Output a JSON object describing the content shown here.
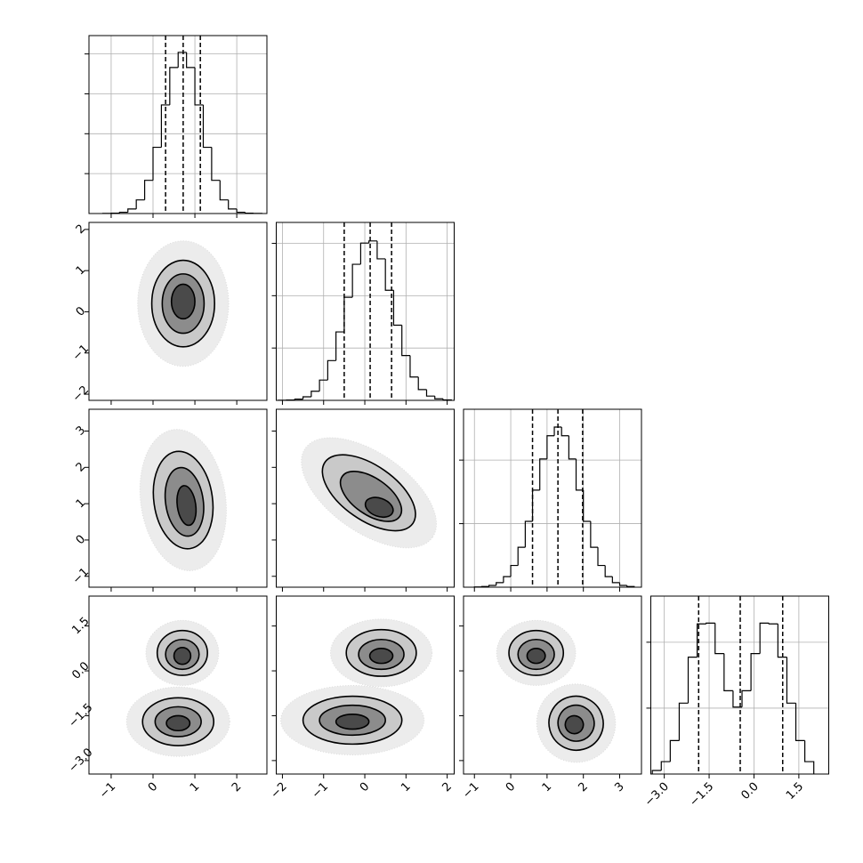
{
  "chart_data": {
    "type": "corner",
    "parameters": [
      {
        "lim": [
          -1.53,
          2.72
        ],
        "ticks": [
          {
            "value": -1,
            "label": "−1"
          },
          0,
          1,
          2
        ],
        "bins": [
          -1.2,
          -1.0,
          -0.8,
          -0.6,
          -0.4,
          -0.2,
          0.0,
          0.2,
          0.4,
          0.6,
          0.8,
          1.0,
          1.2,
          1.4,
          1.6,
          1.8,
          2.0,
          2.2,
          2.4,
          2.6
        ],
        "counts": [
          1,
          4,
          16,
          57,
          171,
          416,
          830,
          1361,
          1830,
          2020,
          1830,
          1361,
          830,
          416,
          171,
          57,
          16,
          4,
          1
        ],
        "ylim": [
          0,
          2230
        ],
        "yticks": [
          500,
          1000,
          1500,
          2000
        ],
        "quantiles": [
          0.3,
          0.72,
          1.13
        ]
      },
      {
        "lim": [
          -2.15,
          2.17
        ],
        "ticks": [
          {
            "value": -2,
            "label": "−2"
          },
          {
            "value": -1,
            "label": "−1"
          },
          0,
          1,
          2
        ],
        "bins": [
          -2.1,
          -1.9,
          -1.7,
          -1.5,
          -1.3,
          -1.1,
          -0.9,
          -0.7,
          -0.5,
          -0.3,
          -0.1,
          0.1,
          0.3,
          0.5,
          0.7,
          0.9,
          1.1,
          1.3,
          1.5,
          1.7,
          1.9,
          2.1
        ],
        "counts": [
          1,
          3,
          12,
          34,
          87,
          194,
          380,
          654,
          985,
          1300,
          1503,
          1523,
          1352,
          1052,
          718,
          428,
          223,
          103,
          41,
          15,
          4
        ],
        "ylim": [
          0,
          1700
        ],
        "yticks": [
          500,
          1000,
          1500
        ],
        "quantiles": [
          -0.5,
          0.13,
          0.65
        ]
      },
      {
        "lim": [
          -1.3,
          3.6
        ],
        "ticks": [
          {
            "value": -1,
            "label": "−1"
          },
          0,
          1,
          2,
          3
        ],
        "bins": [
          -1.0,
          -0.8,
          -0.6,
          -0.4,
          -0.2,
          0.0,
          0.2,
          0.4,
          0.6,
          0.8,
          1.0,
          1.2,
          1.4,
          1.6,
          1.8,
          2.0,
          2.2,
          2.4,
          2.6,
          2.8,
          3.0,
          3.2,
          3.4
        ],
        "counts": [
          2,
          5,
          14,
          36,
          83,
          171,
          314,
          518,
          764,
          1009,
          1192,
          1260,
          1192,
          1009,
          764,
          518,
          314,
          171,
          83,
          36,
          14,
          5
        ],
        "ylim": [
          0,
          1400
        ],
        "yticks": [
          500,
          1000
        ],
        "quantiles": [
          0.6,
          1.3,
          1.98
        ]
      },
      {
        "lim": [
          -3.45,
          2.5
        ],
        "ticks": [
          {
            "value": -3,
            "label": "−3.0"
          },
          {
            "value": -1.5,
            "label": "−1.5"
          },
          {
            "value": 0,
            "label": "0.0"
          },
          1.5
        ],
        "bins": [
          -3.4,
          -3.1,
          -2.8,
          -2.5,
          -2.2,
          -1.9,
          -1.6,
          -1.3,
          -1.0,
          -0.7,
          -0.4,
          -0.1,
          0.2,
          0.5,
          0.8,
          1.1,
          1.4,
          1.7,
          2.0
        ],
        "counts": [
          27,
          94,
          254,
          538,
          887,
          1139,
          1145,
          914,
          632,
          508,
          632,
          914,
          1145,
          1139,
          887,
          538,
          254,
          94
        ],
        "ylim": [
          0,
          1350
        ],
        "yticks": [
          500,
          1000
        ],
        "quantiles": [
          -1.85,
          -0.46,
          0.96
        ]
      }
    ],
    "pairs": [
      {
        "contours": [
          [
            {
              "x": 0.72,
              "y": 0.2,
              "rx": 0.75,
              "ry": 1.05,
              "angle": 0
            },
            {
              "x": 0.72,
              "y": 0.2,
              "rx": 0.5,
              "ry": 0.72,
              "angle": 0
            },
            {
              "x": 0.72,
              "y": 0.25,
              "rx": 0.28,
              "ry": 0.42,
              "angle": 0
            }
          ]
        ]
      },
      {
        "contours": [
          [
            {
              "x": 0.72,
              "y": 1.1,
              "rx": 0.7,
              "ry": 1.35,
              "angle": -8
            },
            {
              "x": 0.75,
              "y": 1.05,
              "rx": 0.45,
              "ry": 0.95,
              "angle": -8
            },
            {
              "x": 0.8,
              "y": 0.95,
              "rx": 0.22,
              "ry": 0.55,
              "angle": -8
            }
          ]
        ]
      },
      {
        "contours": [
          [
            {
              "x": 0.1,
              "y": 1.3,
              "rx": 1.3,
              "ry": 0.75,
              "angle": 35
            },
            {
              "x": 0.15,
              "y": 1.2,
              "rx": 0.85,
              "ry": 0.5,
              "angle": 35
            },
            {
              "x": 0.35,
              "y": 0.9,
              "rx": 0.35,
              "ry": 0.25,
              "angle": 20
            }
          ]
        ]
      },
      {
        "contours": [
          [
            {
              "x": 0.7,
              "y": 0.6,
              "rx": 0.6,
              "ry": 0.75,
              "angle": 0
            },
            {
              "x": 0.7,
              "y": 0.55,
              "rx": 0.4,
              "ry": 0.5,
              "angle": 0
            },
            {
              "x": 0.7,
              "y": 0.5,
              "rx": 0.2,
              "ry": 0.28,
              "angle": 0
            }
          ],
          [
            {
              "x": 0.6,
              "y": -1.7,
              "rx": 0.85,
              "ry": 0.8,
              "angle": 0
            },
            {
              "x": 0.6,
              "y": -1.7,
              "rx": 0.55,
              "ry": 0.5,
              "angle": 0
            },
            {
              "x": 0.6,
              "y": -1.75,
              "rx": 0.28,
              "ry": 0.25,
              "angle": 0
            }
          ]
        ]
      },
      {
        "contours": [
          [
            {
              "x": 0.4,
              "y": 0.6,
              "rx": 0.85,
              "ry": 0.78,
              "angle": 0
            },
            {
              "x": 0.4,
              "y": 0.55,
              "rx": 0.55,
              "ry": 0.5,
              "angle": 0
            },
            {
              "x": 0.4,
              "y": 0.5,
              "rx": 0.28,
              "ry": 0.25,
              "angle": 0
            }
          ],
          [
            {
              "x": -0.3,
              "y": -1.65,
              "rx": 1.2,
              "ry": 0.8,
              "angle": 0
            },
            {
              "x": -0.3,
              "y": -1.65,
              "rx": 0.8,
              "ry": 0.5,
              "angle": 0
            },
            {
              "x": -0.3,
              "y": -1.7,
              "rx": 0.4,
              "ry": 0.25,
              "angle": 0
            }
          ]
        ]
      },
      {
        "contours": [
          [
            {
              "x": 0.7,
              "y": 0.6,
              "rx": 0.75,
              "ry": 0.75,
              "angle": 0
            },
            {
              "x": 0.7,
              "y": 0.55,
              "rx": 0.5,
              "ry": 0.5,
              "angle": 0
            },
            {
              "x": 0.7,
              "y": 0.5,
              "rx": 0.25,
              "ry": 0.25,
              "angle": 0
            }
          ],
          [
            {
              "x": 1.8,
              "y": -1.75,
              "rx": 0.75,
              "ry": 0.9,
              "angle": 30
            },
            {
              "x": 1.8,
              "y": -1.75,
              "rx": 0.5,
              "ry": 0.6,
              "angle": 30
            },
            {
              "x": 1.75,
              "y": -1.8,
              "rx": 0.25,
              "ry": 0.3,
              "angle": 30
            }
          ]
        ]
      }
    ],
    "grid": true
  }
}
